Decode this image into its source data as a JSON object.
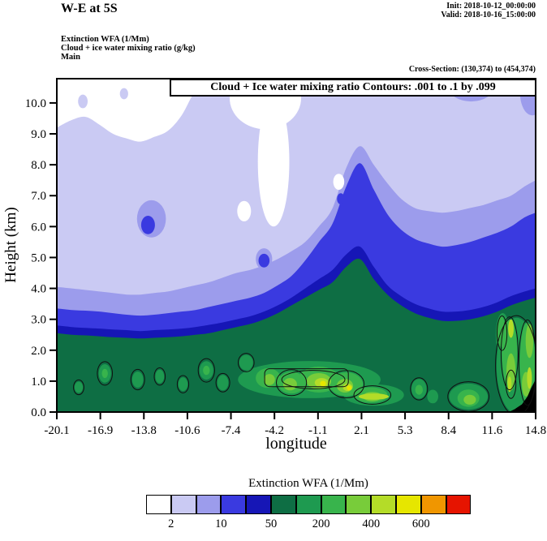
{
  "header": {
    "title": "W-E at 5S",
    "init": "Init: 2018-10-12_00:00:00",
    "valid": "Valid: 2018-10-16_15:00:00",
    "field1": "Extinction WFA  (1/Mm)",
    "field2": "Cloud + ice water mixing ratio   (g/kg)",
    "field3": "Main",
    "cross_section": "Cross-Section: (130,374) to (454,374)"
  },
  "plot": {
    "inner_title": "Cloud + Ice water mixing ratio Contours: .001 to .1 by .099",
    "xlabel": "longitude",
    "ylabel": "Height (km)"
  },
  "legend": {
    "title": "Extinction WFA  (1/Mm)",
    "colors": [
      "#ffffff",
      "#cacaf3",
      "#9c9cec",
      "#3a3ae0",
      "#1616b6",
      "#0e6e44",
      "#1e9a50",
      "#38b44c",
      "#78cc3a",
      "#b4dc28",
      "#e6e600",
      "#f09600",
      "#e61400"
    ],
    "labels": [
      {
        "text": "2",
        "edge": 1
      },
      {
        "text": "10",
        "edge": 3
      },
      {
        "text": "50",
        "edge": 5
      },
      {
        "text": "200",
        "edge": 7
      },
      {
        "text": "400",
        "edge": 9
      },
      {
        "text": "600",
        "edge": 11
      }
    ]
  },
  "chart_data": {
    "type": "filled-contour-cross-section",
    "title": "Cloud + Ice water mixing ratio Contours: .001 to .1 by .099",
    "x_axis": {
      "label": "longitude",
      "range": [
        -20.1,
        14.8
      ],
      "ticks": [
        "-20.1",
        "-16.9",
        "-13.8",
        "-10.6",
        "-7.4",
        "-4.2",
        "-1.1",
        "2.1",
        "5.3",
        "8.4",
        "11.6",
        "14.8"
      ]
    },
    "y_axis": {
      "label": "Height (km)",
      "range": [
        0,
        10.785
      ],
      "ticks": [
        "0.0",
        "1.0",
        "2.0",
        "3.0",
        "4.0",
        "5.0",
        "6.0",
        "7.0",
        "8.0",
        "9.0",
        "10.0"
      ]
    },
    "fill_field_units": "1/Mm",
    "scale_boundaries": [
      2,
      5,
      10,
      20,
      50,
      100,
      200,
      300,
      400,
      500,
      600,
      700
    ],
    "x_samples": [
      -20.1,
      -19,
      -18,
      -17,
      -16,
      -15,
      -14,
      -13,
      -12,
      -11,
      -10,
      -9,
      -8,
      -7,
      -6,
      -5,
      -4,
      -3,
      -2,
      -1,
      0,
      1,
      2,
      3,
      4,
      5,
      6,
      7,
      8,
      9,
      10,
      11,
      12,
      13,
      14,
      14.8
    ],
    "bands": [
      {
        "name": "extinction >= 2",
        "color_index": 1,
        "top_km": [
          9.2,
          9.45,
          9.55,
          9.3,
          9.0,
          8.85,
          8.75,
          8.9,
          9.1,
          9.6,
          10.4,
          10.79,
          10.79,
          10.79,
          10.79,
          10.79,
          10.79,
          10.79,
          10.79,
          10.79,
          10.79,
          10.79,
          10.79,
          10.79,
          10.79,
          10.79,
          10.79,
          10.79,
          10.79,
          10.79,
          10.79,
          10.79,
          10.79,
          10.79,
          10.79,
          10.79
        ]
      },
      {
        "name": "extinction >= 5",
        "color_index": 2,
        "top_km": [
          4.05,
          4.0,
          3.95,
          3.9,
          3.85,
          3.8,
          3.8,
          3.85,
          3.9,
          4.0,
          4.1,
          4.2,
          4.35,
          4.5,
          4.6,
          4.75,
          4.95,
          5.2,
          5.5,
          6.0,
          6.6,
          7.9,
          8.6,
          8.0,
          7.4,
          6.9,
          6.6,
          6.5,
          6.45,
          6.5,
          6.6,
          6.7,
          6.85,
          7.0,
          7.3,
          7.5
        ]
      },
      {
        "name": "extinction >= 10",
        "color_index": 3,
        "top_km": [
          3.35,
          3.3,
          3.28,
          3.25,
          3.2,
          3.15,
          3.12,
          3.15,
          3.2,
          3.25,
          3.3,
          3.4,
          3.5,
          3.6,
          3.7,
          3.85,
          4.1,
          4.4,
          4.9,
          5.5,
          6.1,
          7.3,
          8.05,
          7.2,
          6.4,
          5.9,
          5.6,
          5.45,
          5.35,
          5.4,
          5.5,
          5.65,
          5.8,
          6.0,
          6.3,
          6.45
        ]
      },
      {
        "name": "extinction >= 20",
        "color_index": 4,
        "top_km": [
          2.8,
          2.75,
          2.72,
          2.7,
          2.67,
          2.65,
          2.62,
          2.65,
          2.67,
          2.7,
          2.75,
          2.82,
          2.9,
          3.0,
          3.1,
          3.25,
          3.45,
          3.7,
          4.0,
          4.3,
          4.6,
          5.1,
          5.35,
          4.7,
          4.1,
          3.75,
          3.5,
          3.35,
          3.25,
          3.25,
          3.3,
          3.4,
          3.55,
          3.75,
          3.9,
          4.0
        ]
      },
      {
        "name": "extinction >= 50",
        "color_index": 5,
        "top_km": [
          2.55,
          2.5,
          2.48,
          2.45,
          2.42,
          2.4,
          2.38,
          2.4,
          2.42,
          2.45,
          2.5,
          2.55,
          2.65,
          2.75,
          2.85,
          3.0,
          3.2,
          3.45,
          3.7,
          3.95,
          4.2,
          4.7,
          4.95,
          4.3,
          3.8,
          3.45,
          3.2,
          3.05,
          2.95,
          2.95,
          3.0,
          3.1,
          3.25,
          3.45,
          3.6,
          3.7
        ]
      }
    ],
    "patch_format": [
      "color_index",
      "cx_lon",
      "cy_km",
      "rx_lon",
      "ry_km"
    ],
    "patches": [
      [
        0,
        -4.9,
        10.15,
        2.6,
        1.0
      ],
      [
        0,
        -4.3,
        8.1,
        1.15,
        2.1
      ],
      [
        0,
        -6.45,
        6.5,
        0.5,
        0.33
      ],
      [
        0,
        0.45,
        7.45,
        0.4,
        0.26
      ],
      [
        1,
        -18.2,
        10.05,
        0.35,
        0.22
      ],
      [
        1,
        -15.2,
        10.3,
        0.3,
        0.18
      ],
      [
        2,
        10.1,
        10.55,
        1.7,
        0.5
      ],
      [
        2,
        14.55,
        10.35,
        0.9,
        0.75
      ],
      [
        2,
        -13.2,
        6.25,
        1.05,
        0.6
      ],
      [
        2,
        -5.0,
        4.95,
        0.6,
        0.35
      ],
      [
        3,
        -13.45,
        6.05,
        0.5,
        0.3
      ],
      [
        3,
        -5.0,
        4.9,
        0.4,
        0.22
      ],
      [
        3,
        0.6,
        6.9,
        0.28,
        0.18
      ],
      [
        6,
        -1.7,
        1.05,
        5.2,
        0.6
      ],
      [
        6,
        3.0,
        0.55,
        2.2,
        0.35
      ],
      [
        6,
        -16.6,
        1.25,
        0.45,
        0.3
      ],
      [
        6,
        -14.2,
        1.05,
        0.4,
        0.26
      ],
      [
        6,
        -12.6,
        1.15,
        0.32,
        0.22
      ],
      [
        6,
        -10.9,
        0.9,
        0.34,
        0.22
      ],
      [
        6,
        -9.2,
        1.35,
        0.5,
        0.3
      ],
      [
        6,
        -8.0,
        0.95,
        0.4,
        0.25
      ],
      [
        6,
        -18.5,
        0.8,
        0.3,
        0.18
      ],
      [
        6,
        -6.3,
        1.6,
        0.5,
        0.25
      ],
      [
        6,
        6.3,
        0.75,
        0.55,
        0.32
      ],
      [
        6,
        7.3,
        0.5,
        0.4,
        0.22
      ],
      [
        6,
        9.9,
        0.5,
        1.4,
        0.42
      ],
      [
        6,
        13.4,
        1.5,
        1.45,
        1.55
      ],
      [
        6,
        12.4,
        2.5,
        0.5,
        0.7
      ],
      [
        7,
        -4.7,
        1.1,
        0.9,
        0.32
      ],
      [
        7,
        -3.0,
        0.95,
        1.0,
        0.35
      ],
      [
        7,
        -1.0,
        1.05,
        1.5,
        0.42
      ],
      [
        7,
        1.0,
        0.9,
        1.2,
        0.38
      ],
      [
        7,
        2.8,
        0.55,
        1.2,
        0.25
      ],
      [
        7,
        -16.6,
        1.25,
        0.22,
        0.15
      ],
      [
        7,
        -9.2,
        1.35,
        0.25,
        0.15
      ],
      [
        7,
        6.3,
        0.72,
        0.28,
        0.16
      ],
      [
        7,
        9.9,
        0.45,
        0.8,
        0.28
      ],
      [
        7,
        12.9,
        1.9,
        0.55,
        1.1
      ],
      [
        7,
        14.2,
        1.6,
        0.55,
        1.3
      ],
      [
        7,
        12.3,
        2.6,
        0.3,
        0.5
      ],
      [
        8,
        -1.0,
        1.0,
        0.9,
        0.26
      ],
      [
        8,
        0.9,
        0.85,
        0.6,
        0.22
      ],
      [
        8,
        -3.1,
        0.9,
        0.5,
        0.2
      ],
      [
        8,
        -4.6,
        1.05,
        0.4,
        0.18
      ],
      [
        8,
        2.9,
        0.5,
        0.7,
        0.15
      ],
      [
        8,
        10.0,
        0.4,
        0.45,
        0.16
      ],
      [
        8,
        13.0,
        1.3,
        0.33,
        0.6
      ],
      [
        8,
        14.35,
        2.3,
        0.28,
        0.55
      ],
      [
        8,
        14.1,
        0.9,
        0.3,
        0.4
      ],
      [
        9,
        -0.8,
        0.95,
        0.5,
        0.15
      ],
      [
        9,
        1.1,
        0.8,
        0.35,
        0.12
      ],
      [
        9,
        3.0,
        0.5,
        1.1,
        0.1
      ],
      [
        9,
        13.0,
        2.7,
        0.2,
        0.3
      ],
      [
        9,
        14.35,
        1.1,
        0.18,
        0.35
      ],
      [
        9,
        12.9,
        0.9,
        0.15,
        0.25
      ],
      [
        10,
        -0.7,
        0.92,
        0.22,
        0.09
      ],
      [
        10,
        1.2,
        0.78,
        0.18,
        0.08
      ]
    ],
    "terrain": {
      "color": "#000000",
      "points": [
        [
          12.85,
          0
        ],
        [
          13.3,
          0.1
        ],
        [
          13.8,
          0.25
        ],
        [
          14.2,
          0.5
        ],
        [
          14.5,
          0.8
        ],
        [
          14.8,
          1.05
        ],
        [
          14.8,
          0
        ]
      ]
    },
    "cloud_contours": {
      "levels": [
        0.001,
        0.1
      ],
      "ellipse_format": [
        "cx_lon",
        "cy_km",
        "rx_lon",
        "ry_km"
      ],
      "ellipses": [
        [
          -16.6,
          1.25,
          0.55,
          0.38
        ],
        [
          -14.2,
          1.05,
          0.5,
          0.33
        ],
        [
          -12.6,
          1.15,
          0.4,
          0.28
        ],
        [
          -10.9,
          0.9,
          0.42,
          0.28
        ],
        [
          -9.2,
          1.35,
          0.6,
          0.38
        ],
        [
          -8.0,
          0.95,
          0.5,
          0.3
        ],
        [
          -18.5,
          0.8,
          0.38,
          0.24
        ],
        [
          -6.3,
          1.6,
          0.58,
          0.3
        ],
        [
          -1.4,
          1.05,
          2.3,
          0.3
        ],
        [
          -3.0,
          0.95,
          1.1,
          0.42
        ],
        [
          1.0,
          0.9,
          1.3,
          0.44
        ],
        [
          2.9,
          0.55,
          1.35,
          0.3
        ],
        [
          6.3,
          0.75,
          0.62,
          0.36
        ],
        [
          9.9,
          0.5,
          1.5,
          0.48
        ],
        [
          13.4,
          1.5,
          1.52,
          1.62
        ],
        [
          12.9,
          1.9,
          0.62,
          1.18
        ],
        [
          14.2,
          1.6,
          0.62,
          1.38
        ],
        [
          12.35,
          2.55,
          0.36,
          0.56
        ],
        [
          13.0,
          0.9,
          0.36,
          0.46
        ]
      ],
      "rects": [
        {
          "x": -4.95,
          "y_bottom": 0.82,
          "w": 6.1,
          "h": 0.58
        }
      ]
    }
  }
}
